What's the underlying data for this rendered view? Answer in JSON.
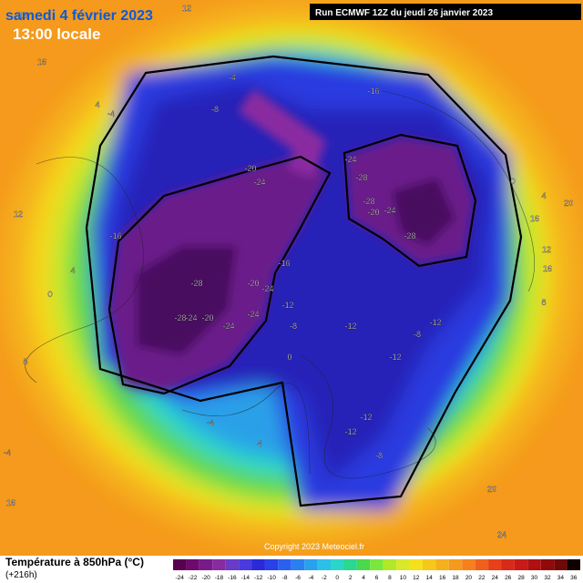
{
  "header": {
    "title": "samedi 4 février 2023",
    "time": "13:00 locale",
    "run": "Run ECMWF 12Z du jeudi 26 janvier 2023"
  },
  "map": {
    "labels": [
      -16,
      -20,
      -24,
      -24,
      -28,
      -28,
      -20,
      -24,
      -28,
      -16,
      -16,
      -28,
      -20,
      -24,
      -12,
      -28,
      -24,
      -20,
      -24,
      -24,
      -8,
      -12,
      -12,
      -8,
      -12,
      -12,
      -12,
      -8,
      -4,
      -8,
      -4,
      4,
      16,
      12,
      0,
      0,
      4,
      -4,
      20,
      16,
      12,
      16,
      8,
      16,
      20,
      24,
      0,
      4,
      16,
      12,
      -4,
      4,
      8
    ]
  },
  "legend": {
    "title": "Température à 850hPa (°C)",
    "lead": "(+216h)",
    "copyright": "Copyright 2023 Meteociel.fr",
    "ticks": [
      -24,
      -22,
      -20,
      -18,
      -16,
      -14,
      -12,
      -10,
      -8,
      -6,
      -4,
      -2,
      0,
      2,
      4,
      6,
      8,
      10,
      12,
      14,
      16,
      18,
      20,
      22,
      24,
      26,
      28,
      30,
      32,
      34,
      36
    ]
  }
}
